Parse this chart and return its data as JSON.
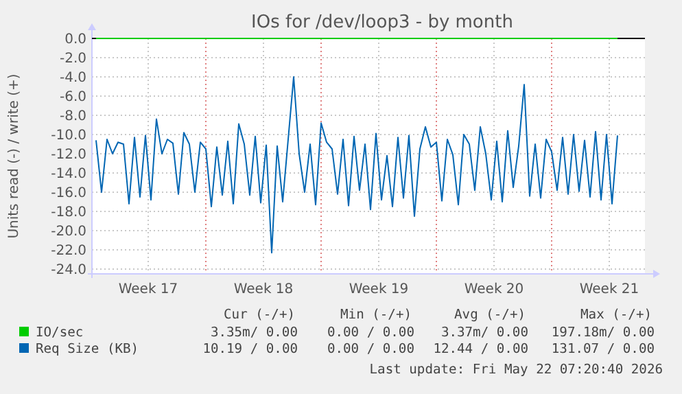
{
  "chart_data": {
    "type": "line",
    "title": "IOs for /dev/loop3 - by month",
    "ylabel": "Units read (-) / write (+)",
    "xlim": [
      "2026-04-20T02:00",
      "2026-05-23T16:00"
    ],
    "xticks": [
      {
        "value": "2026-04-23T12:00",
        "label": "Week 17"
      },
      {
        "value": "2026-04-27",
        "label": null
      },
      {
        "value": "2026-04-30T12:00",
        "label": "Week 18"
      },
      {
        "value": "2026-05-04",
        "label": null
      },
      {
        "value": "2026-05-07T12:00",
        "label": "Week 19"
      },
      {
        "value": "2026-05-11",
        "label": null
      },
      {
        "value": "2026-05-14T12:00",
        "label": "Week 20"
      },
      {
        "value": "2026-05-18",
        "label": null
      },
      {
        "value": "2026-05-21T12:00",
        "label": "Week 21"
      }
    ],
    "ylim": [
      -24.5,
      0
    ],
    "yticks": [
      {
        "value": 0,
        "label": "0.0"
      },
      {
        "value": -2,
        "label": "-2.0"
      },
      {
        "value": -4,
        "label": "-4.0"
      },
      {
        "value": -6,
        "label": "-6.0"
      },
      {
        "value": -8,
        "label": "-8.0"
      },
      {
        "value": -10,
        "label": "-10.0"
      },
      {
        "value": -12,
        "label": "-12.0"
      },
      {
        "value": -14,
        "label": "-14.0"
      },
      {
        "value": -16,
        "label": "-16.0"
      },
      {
        "value": -18,
        "label": "-18.0"
      },
      {
        "value": -20,
        "label": "-20.0"
      },
      {
        "value": -22,
        "label": "-22.0"
      },
      {
        "value": -24,
        "label": "-24.0"
      }
    ],
    "grid": true,
    "legend": "bottom",
    "series": [
      {
        "name": "IO/sec",
        "color": "#00cc00",
        "x": [
          "2026-04-20T08:00",
          "2026-05-22T00:00"
        ],
        "values": [
          0,
          0
        ]
      },
      {
        "name": "Req Size (KB)",
        "color": "#0066b3",
        "x": [
          "2026-04-20T08:00",
          "2026-04-20T16:00",
          "2026-04-21T00:00",
          "2026-04-21T08:00",
          "2026-04-21T16:00",
          "2026-04-22T00:00",
          "2026-04-22T08:00",
          "2026-04-22T16:00",
          "2026-04-23T00:00",
          "2026-04-23T08:00",
          "2026-04-23T16:00",
          "2026-04-24T00:00",
          "2026-04-24T08:00",
          "2026-04-24T16:00",
          "2026-04-25T00:00",
          "2026-04-25T08:00",
          "2026-04-25T16:00",
          "2026-04-26T00:00",
          "2026-04-26T08:00",
          "2026-04-26T16:00",
          "2026-04-27T00:00",
          "2026-04-27T08:00",
          "2026-04-27T16:00",
          "2026-04-28T00:00",
          "2026-04-28T08:00",
          "2026-04-28T16:00",
          "2026-04-29T00:00",
          "2026-04-29T08:00",
          "2026-04-29T16:00",
          "2026-04-30T00:00",
          "2026-04-30T08:00",
          "2026-04-30T16:00",
          "2026-05-01T00:00",
          "2026-05-01T08:00",
          "2026-05-01T16:00",
          "2026-05-02T00:00",
          "2026-05-02T08:00",
          "2026-05-02T16:00",
          "2026-05-03T00:00",
          "2026-05-03T08:00",
          "2026-05-03T16:00",
          "2026-05-04T00:00",
          "2026-05-04T08:00",
          "2026-05-04T16:00",
          "2026-05-05T00:00",
          "2026-05-05T08:00",
          "2026-05-05T16:00",
          "2026-05-06T00:00",
          "2026-05-06T08:00",
          "2026-05-06T16:00",
          "2026-05-07T00:00",
          "2026-05-07T08:00",
          "2026-05-07T16:00",
          "2026-05-08T00:00",
          "2026-05-08T08:00",
          "2026-05-08T16:00",
          "2026-05-09T00:00",
          "2026-05-09T08:00",
          "2026-05-09T16:00",
          "2026-05-10T00:00",
          "2026-05-10T08:00",
          "2026-05-10T16:00",
          "2026-05-11T00:00",
          "2026-05-11T08:00",
          "2026-05-11T16:00",
          "2026-05-12T00:00",
          "2026-05-12T08:00",
          "2026-05-12T16:00",
          "2026-05-13T00:00",
          "2026-05-13T08:00",
          "2026-05-13T16:00",
          "2026-05-14T00:00",
          "2026-05-14T08:00",
          "2026-05-14T16:00",
          "2026-05-15T00:00",
          "2026-05-15T08:00",
          "2026-05-15T16:00",
          "2026-05-16T00:00",
          "2026-05-16T08:00",
          "2026-05-16T16:00",
          "2026-05-17T00:00",
          "2026-05-17T08:00",
          "2026-05-17T16:00",
          "2026-05-18T00:00",
          "2026-05-18T08:00",
          "2026-05-18T16:00",
          "2026-05-19T00:00",
          "2026-05-19T08:00",
          "2026-05-19T16:00",
          "2026-05-20T00:00",
          "2026-05-20T08:00",
          "2026-05-20T16:00",
          "2026-05-21T00:00",
          "2026-05-21T08:00",
          "2026-05-21T16:00",
          "2026-05-22T00:00"
        ],
        "values": [
          -10.6,
          -16.0,
          -10.5,
          -12.0,
          -10.8,
          -11.0,
          -17.2,
          -10.3,
          -16.5,
          -10.1,
          -16.8,
          -8.4,
          -12.0,
          -10.5,
          -10.9,
          -16.2,
          -9.8,
          -11.0,
          -16.0,
          -10.8,
          -11.5,
          -17.5,
          -11.3,
          -16.3,
          -10.7,
          -17.2,
          -8.9,
          -11.0,
          -16.3,
          -10.2,
          -17.1,
          -11.1,
          -22.3,
          -11.2,
          -17.0,
          -10.5,
          -4.0,
          -12.0,
          -16.0,
          -11.0,
          -17.3,
          -8.8,
          -10.8,
          -11.5,
          -16.2,
          -10.5,
          -17.4,
          -10.2,
          -15.8,
          -11.0,
          -17.8,
          -9.9,
          -16.8,
          -12.2,
          -17.5,
          -10.3,
          -16.6,
          -10.1,
          -18.5,
          -11.5,
          -9.2,
          -11.3,
          -10.8,
          -16.9,
          -10.5,
          -12.1,
          -17.3,
          -10.0,
          -11.0,
          -15.8,
          -9.2,
          -12.0,
          -16.8,
          -10.7,
          -17.0,
          -9.6,
          -15.5,
          -11.2,
          -4.8,
          -16.4,
          -11.0,
          -16.6,
          -10.5,
          -11.8,
          -15.8,
          -10.3,
          -16.2,
          -10.0,
          -15.9,
          -10.6,
          -16.5,
          -9.7,
          -16.8,
          -10.0,
          -17.2,
          -10.1
        ]
      }
    ],
    "annotations": [
      "Cur (-/+)",
      "Min (-/+)",
      "Avg (-/+)",
      "Max (-/+)",
      "3.35m/ 0.00",
      "0.00 / 0.00",
      "3.37m/ 0.00",
      "197.18m/ 0.00",
      "10.19 / 0.00",
      "0.00 / 0.00",
      "12.44 / 0.00",
      "131.07 / 0.00",
      "Last update: Fri May 22 07:20:40 2026"
    ]
  }
}
